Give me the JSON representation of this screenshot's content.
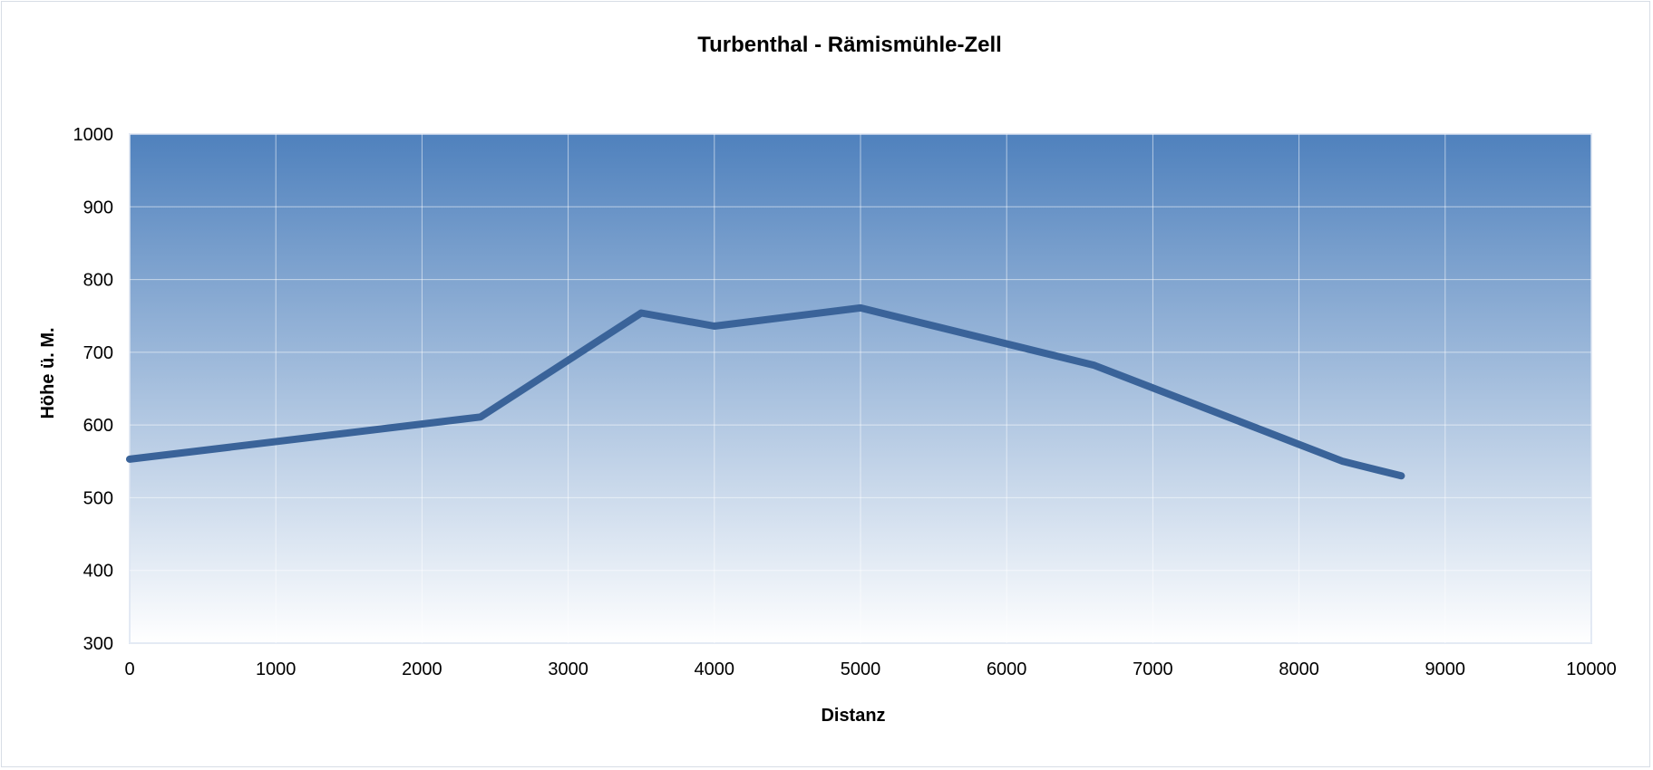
{
  "chart_data": {
    "type": "line",
    "title": "Turbenthal - Rämismühle-Zell",
    "xlabel": "Distanz",
    "ylabel": "Höhe ü. M.",
    "xlim": [
      0,
      10000
    ],
    "ylim": [
      300,
      1000
    ],
    "xticks": [
      "0",
      "1000",
      "2000",
      "3000",
      "4000",
      "5000",
      "6000",
      "7000",
      "8000",
      "9000",
      "10000"
    ],
    "yticks": [
      "300",
      "400",
      "500",
      "600",
      "700",
      "800",
      "900",
      "1000"
    ],
    "grid": true,
    "legend": "none",
    "series": [
      {
        "x": [
          0,
          2400,
          3500,
          4000,
          5000,
          6600,
          8300,
          8700
        ],
        "y": [
          553,
          611,
          754,
          736,
          761,
          682,
          550,
          530
        ],
        "color": "#3a6399"
      }
    ],
    "colors": {
      "plot_top": "#4f81bd",
      "plot_bottom": "#ffffff",
      "grid": "#ffffff",
      "line": "#3a6399"
    }
  }
}
